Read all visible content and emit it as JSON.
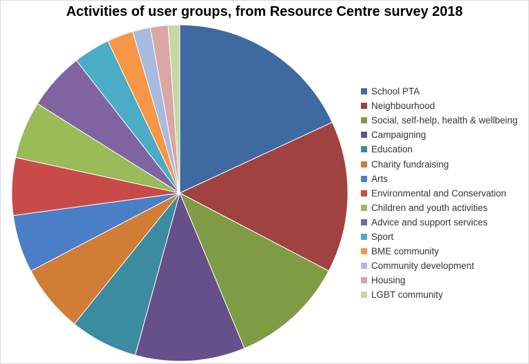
{
  "chart_data": {
    "type": "pie",
    "title": "Activities of user groups, from Resource Centre survey 2018",
    "legend_position": "right",
    "categories": [
      "School PTA",
      "Neighbourhood",
      "Social, self-help, health & wellbeing",
      "Campaigning",
      "Education",
      "Charity fundraising",
      "Arts",
      "Environmental and Conservation",
      "Children and youth activities",
      "Advice and support services",
      "Sport",
      "BME community",
      "Community development",
      "Housing",
      "LGBT community"
    ],
    "values": [
      18,
      14.5,
      11,
      10.5,
      6.5,
      6.5,
      5.5,
      5.5,
      5.5,
      5.5,
      3.5,
      2.5,
      1.7,
      1.7,
      1.1
    ],
    "colors": [
      "#3f6aa1",
      "#a04240",
      "#7f9c45",
      "#66508a",
      "#3b8ba1",
      "#d27d35",
      "#4a7ec6",
      "#c94b49",
      "#9bbb59",
      "#8064a2",
      "#4bacc6",
      "#f79646",
      "#a7bbde",
      "#dba6a6",
      "#c4d8a3"
    ]
  }
}
